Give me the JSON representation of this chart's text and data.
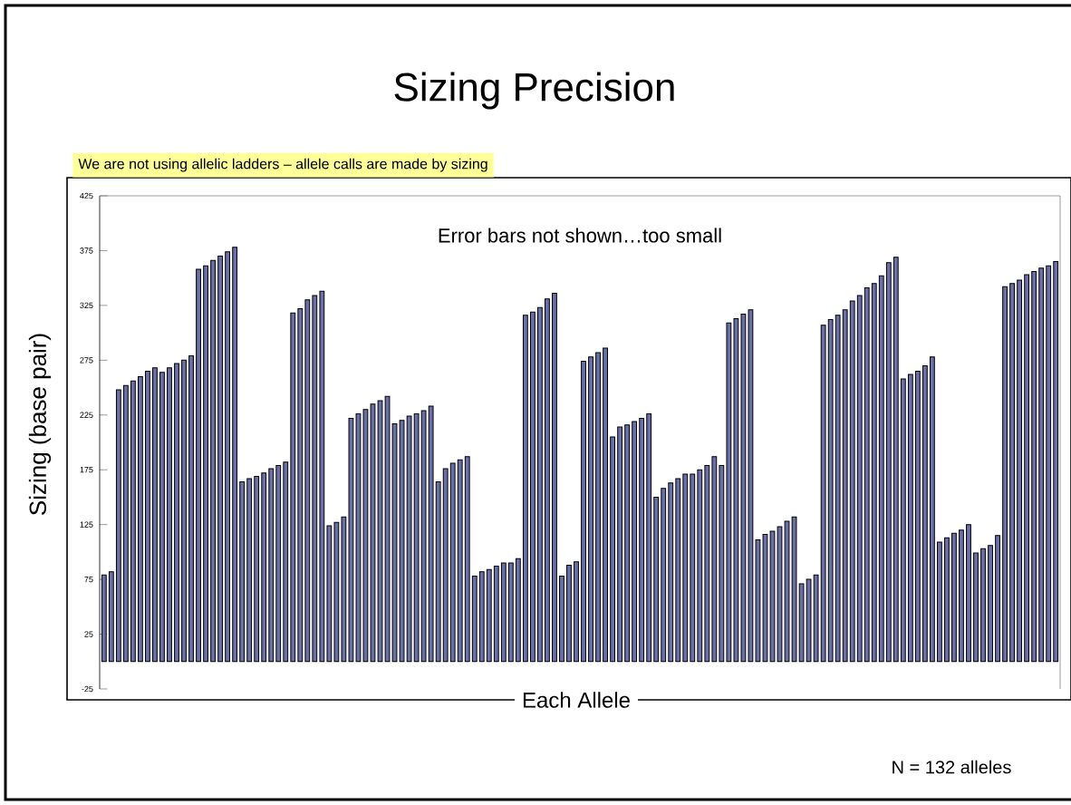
{
  "chart_data": {
    "type": "bar",
    "title": "Sizing Precision",
    "subtitle": "We are not using allelic ladders – allele calls are made by sizing",
    "xlabel": "Each Allele",
    "ylabel": "Sizing (base pair)",
    "annotations": [
      "Error bars not shown…too small",
      "N = 132 alleles"
    ],
    "categories": [
      null,
      null,
      null,
      null,
      null,
      null,
      null,
      null,
      null,
      null,
      null,
      null,
      null,
      null,
      null,
      null,
      null,
      null,
      null,
      null,
      null,
      null,
      null,
      null,
      null,
      null,
      null,
      null,
      null,
      null,
      null,
      null,
      null,
      null,
      null,
      null,
      null,
      null,
      null,
      null,
      null,
      null,
      null,
      null,
      null,
      null,
      null,
      null,
      null,
      null,
      null,
      null,
      null,
      null,
      null,
      null,
      null,
      null,
      null,
      null,
      null,
      null,
      null,
      null,
      null,
      null,
      null,
      null,
      null,
      null,
      null,
      null,
      null,
      null,
      null,
      null,
      null,
      null,
      null,
      null,
      null,
      null,
      null,
      null,
      null,
      null,
      null,
      null,
      null,
      null,
      null,
      null,
      null,
      null,
      null,
      null,
      null,
      null,
      null,
      null,
      null,
      null,
      null,
      null,
      null,
      null,
      null,
      null,
      null,
      null,
      null,
      null,
      null,
      null,
      null,
      null,
      null,
      null,
      null,
      null,
      null,
      null,
      null,
      null,
      null,
      null,
      null,
      null,
      null,
      null,
      null,
      null
    ],
    "series": [
      {
        "color": "#6b6fa8",
        "values": [
          79,
          82,
          248,
          252,
          256,
          260,
          265,
          268,
          264,
          268,
          272,
          275,
          279,
          358,
          361,
          366,
          370,
          374,
          378,
          164,
          167,
          169,
          172,
          176,
          179,
          182,
          318,
          322,
          330,
          334,
          338,
          124,
          127,
          132,
          222,
          226,
          230,
          235,
          238,
          242,
          217,
          220,
          224,
          226,
          229,
          233,
          164,
          176,
          181,
          184,
          187,
          78,
          82,
          84,
          87,
          90,
          90,
          94,
          316,
          319,
          323,
          331,
          336,
          78,
          88,
          91,
          274,
          278,
          282,
          286,
          205,
          214,
          216,
          219,
          222,
          226,
          150,
          158,
          163,
          167,
          171,
          171,
          175,
          179,
          187,
          179,
          309,
          313,
          317,
          321,
          111,
          116,
          119,
          123,
          128,
          132,
          71,
          75,
          79,
          307,
          312,
          316,
          321,
          329,
          334,
          341,
          345,
          352,
          364,
          369,
          258,
          262,
          265,
          270,
          278,
          109,
          113,
          117,
          120,
          125,
          99,
          103,
          106,
          115,
          342,
          345,
          348,
          353,
          356,
          359,
          361,
          365
        ]
      }
    ],
    "ylim": [
      -25,
      425
    ],
    "yticks": [
      -25,
      25,
      75,
      125,
      175,
      225,
      275,
      325,
      375,
      425
    ],
    "grid": false
  }
}
